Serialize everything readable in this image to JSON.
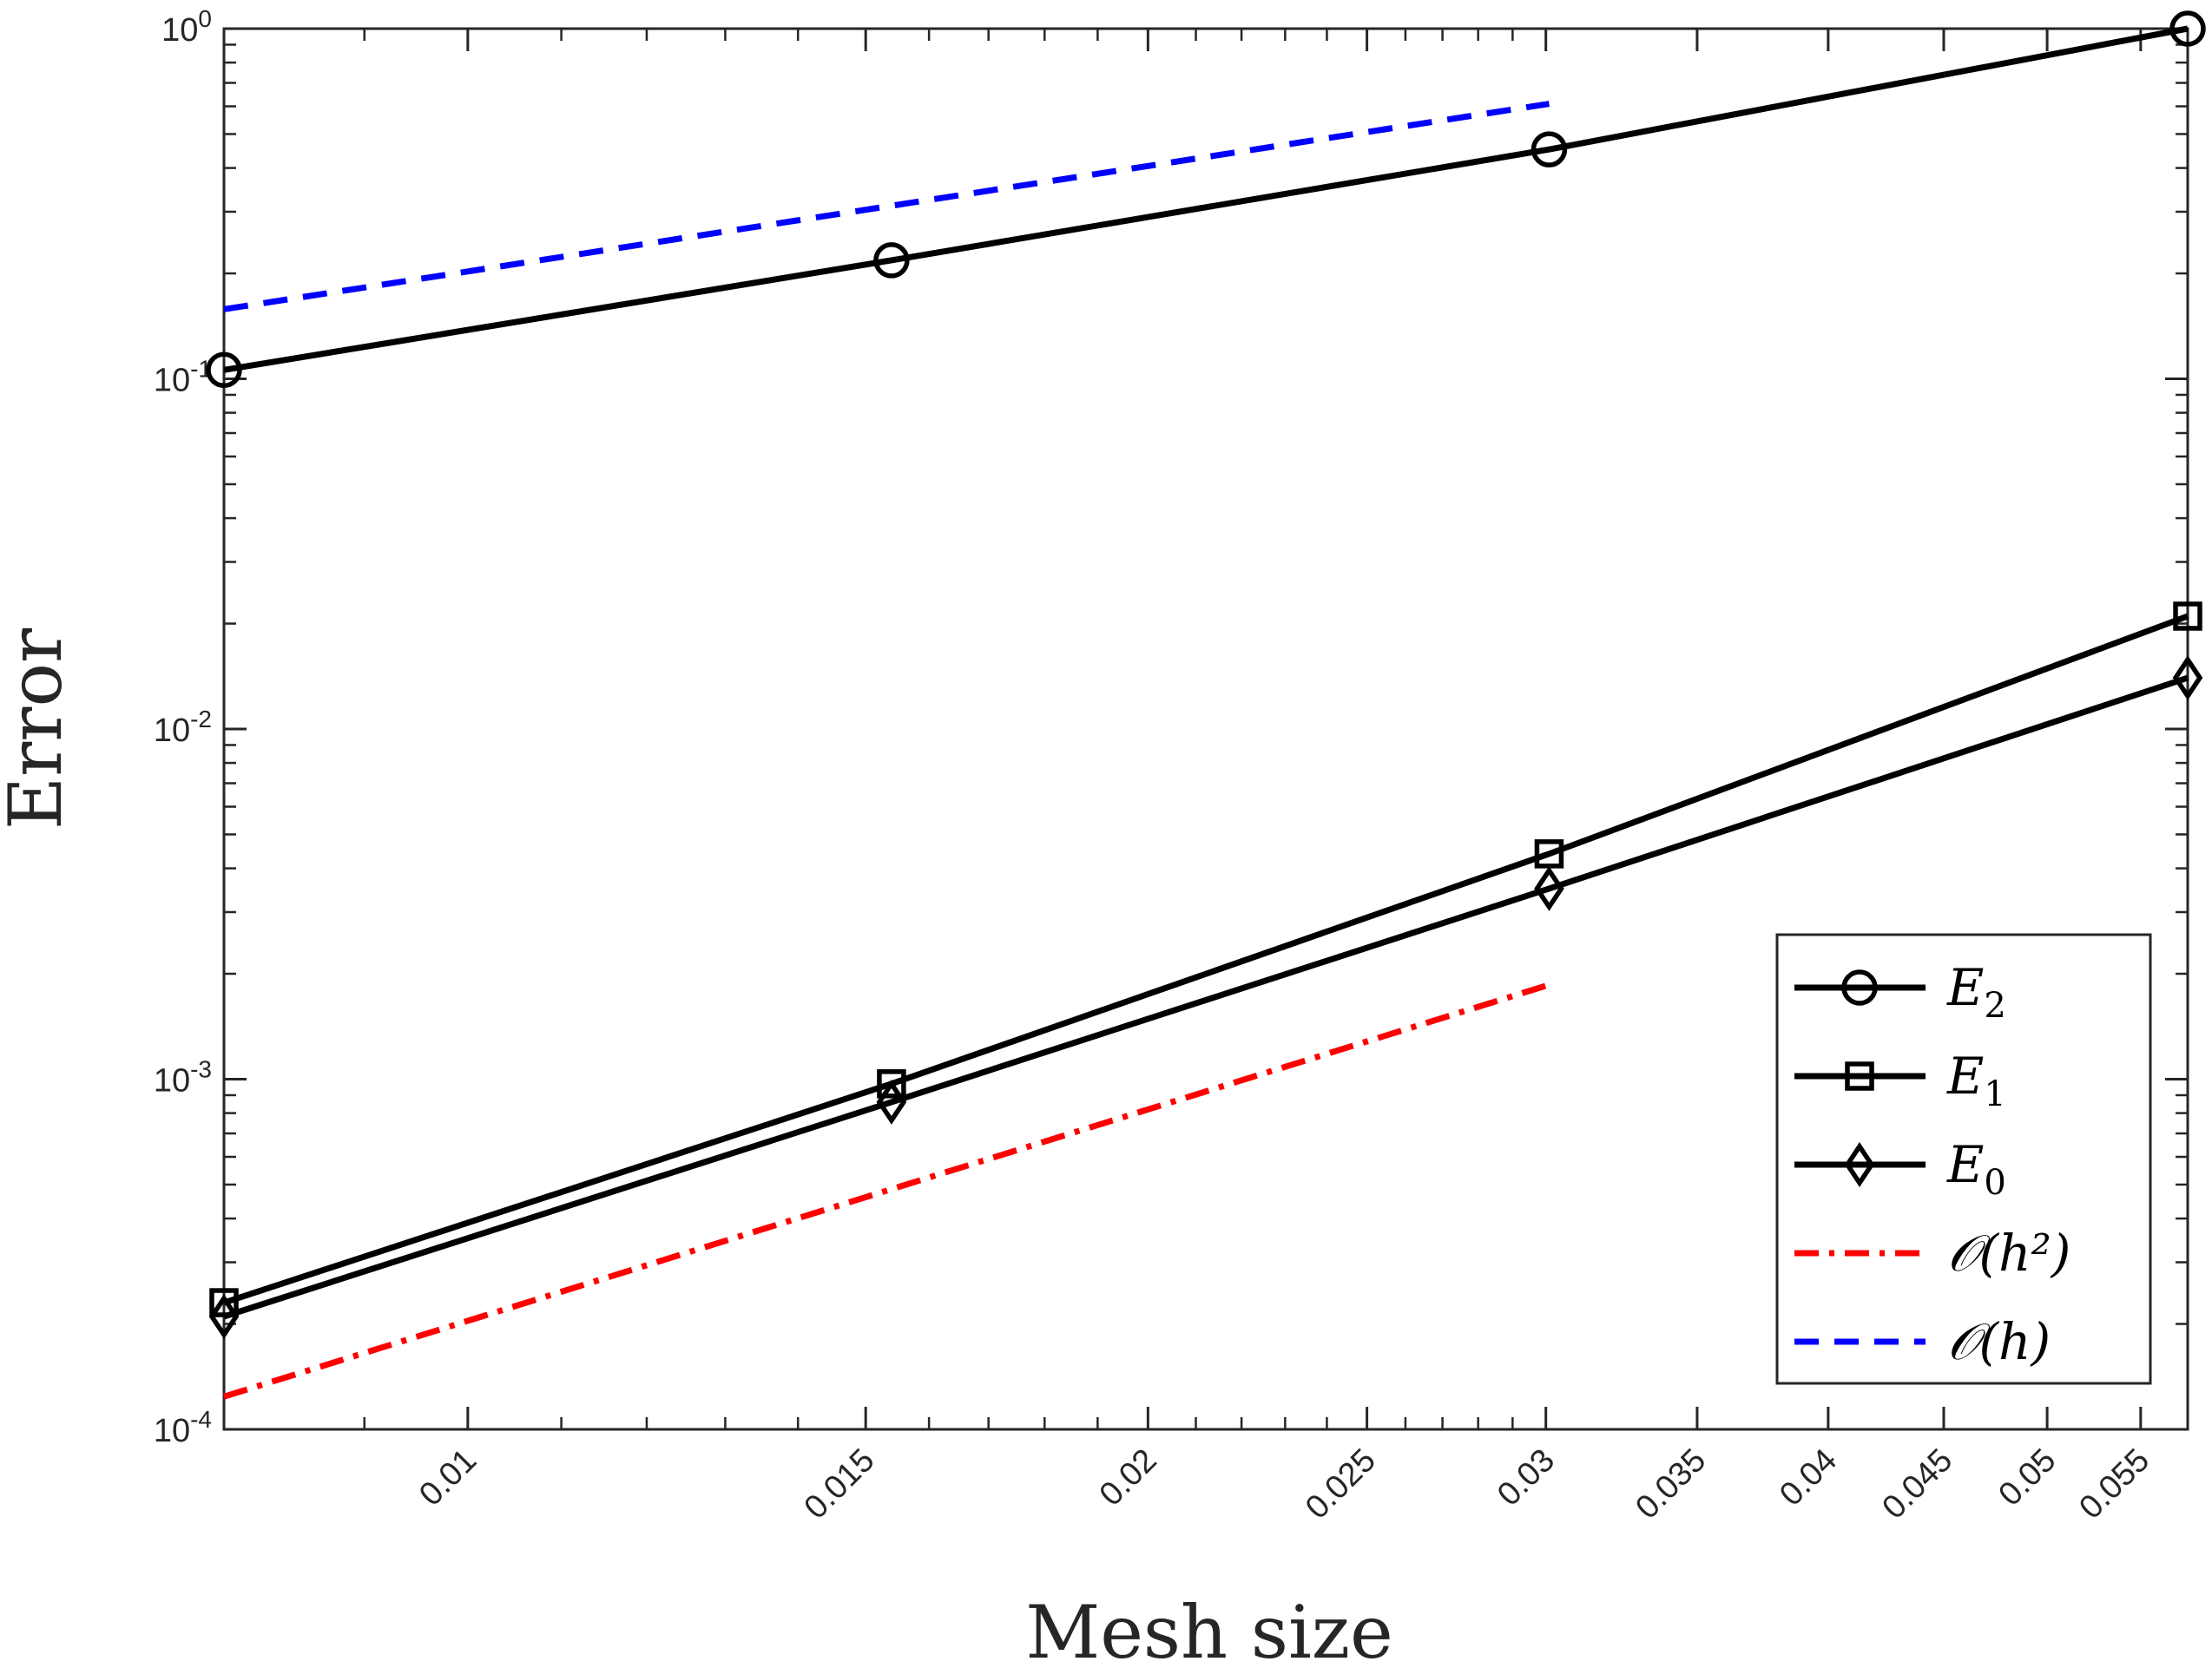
{
  "chart_data": {
    "type": "line",
    "title": "",
    "xlabel": "Mesh size",
    "ylabel": "Error",
    "xscale": "log",
    "yscale": "log",
    "xlim": [
      0.0078,
      0.0577
    ],
    "ylim": [
      0.0001,
      1
    ],
    "grid": false,
    "legend_location": "bottom-right",
    "x_ticks": [
      0.01,
      0.015,
      0.02,
      0.025,
      0.03,
      0.035,
      0.04,
      0.045,
      0.05,
      0.055
    ],
    "x_tick_labels": [
      "0.01",
      "0.015",
      "0.02",
      "0.025",
      "0.03",
      "0.035",
      "0.04",
      "0.045",
      "0.05",
      "0.055"
    ],
    "y_ticks": [
      {
        "value": 1,
        "base": "10",
        "exp": "0"
      },
      {
        "value": 0.1,
        "base": "10",
        "exp": "-1"
      },
      {
        "value": 0.01,
        "base": "10",
        "exp": "-2"
      },
      {
        "value": 0.001,
        "base": "10",
        "exp": "-3"
      },
      {
        "value": 0.0001,
        "base": "10",
        "exp": "-4"
      }
    ],
    "series": [
      {
        "name": "E2",
        "legend_main": "E",
        "legend_sub": "2",
        "marker": "circle",
        "color": "#000000",
        "style": "solid",
        "x": [
          0.0078,
          0.0154,
          0.0301,
          0.0577
        ],
        "values": [
          0.106,
          0.218,
          0.452,
          1.0
        ]
      },
      {
        "name": "E1",
        "legend_main": "E",
        "legend_sub": "1",
        "marker": "square",
        "color": "#000000",
        "style": "solid",
        "x": [
          0.0078,
          0.0154,
          0.0301,
          0.0577
        ],
        "values": [
          0.00023,
          0.00097,
          0.0044,
          0.021
        ]
      },
      {
        "name": "E0",
        "legend_main": "E",
        "legend_sub": "0",
        "marker": "diamond",
        "color": "#000000",
        "style": "solid",
        "x": [
          0.0078,
          0.0154,
          0.0301,
          0.0577
        ],
        "values": [
          0.00021,
          0.00086,
          0.0035,
          0.014
        ]
      },
      {
        "name": "O(h^2)",
        "legend_text": "𝒪(h²)",
        "marker": "none",
        "color": "#ff0000",
        "style": "dashdot",
        "x": [
          0.0078,
          0.0301
        ],
        "values": [
          0.000124,
          0.00186
        ]
      },
      {
        "name": "O(h)",
        "legend_text": "𝒪(h)",
        "marker": "none",
        "color": "#0000ff",
        "style": "dashed",
        "x": [
          0.0078,
          0.0301
        ],
        "values": [
          0.158,
          0.61
        ]
      }
    ]
  }
}
